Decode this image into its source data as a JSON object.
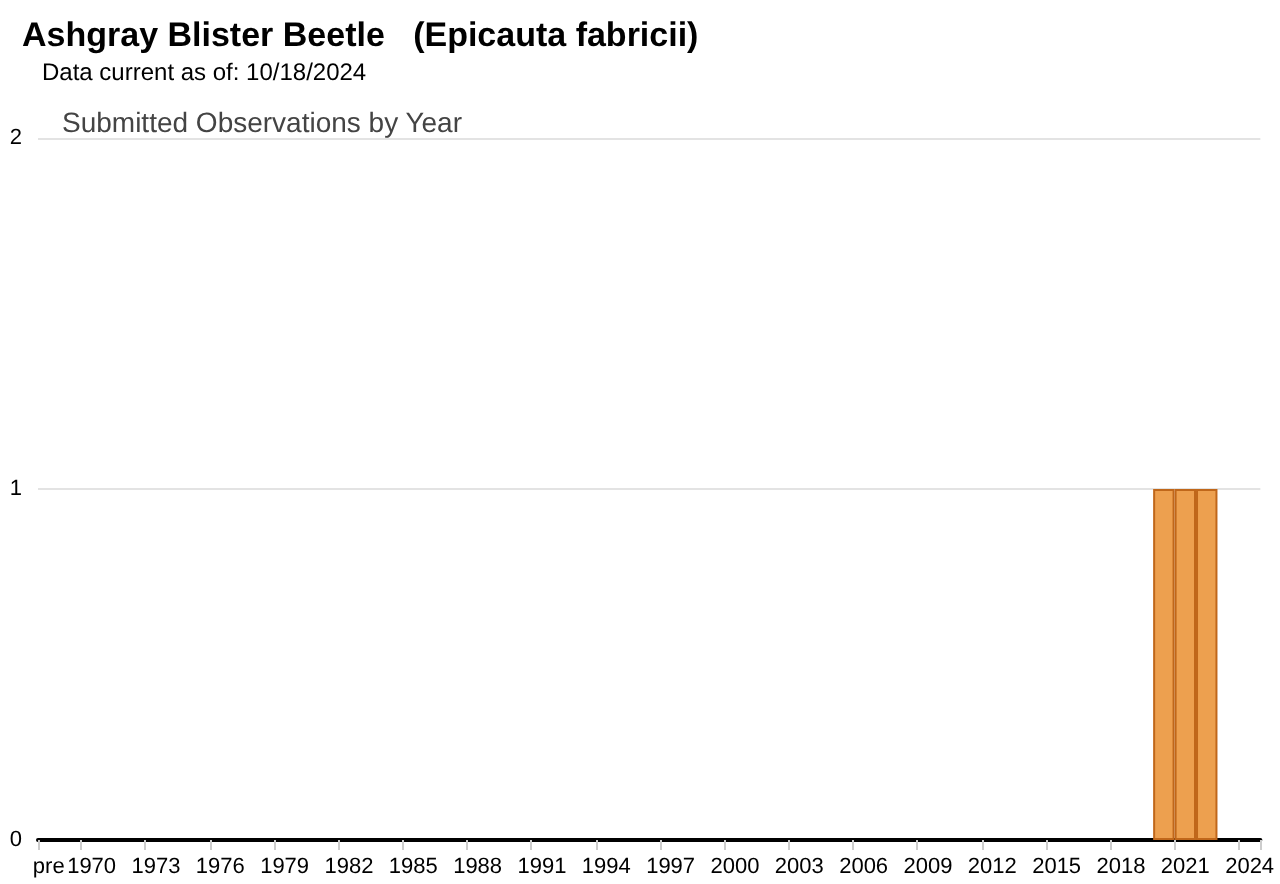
{
  "chart_data": {
    "type": "bar",
    "title": "Ashgray Blister Beetle   (Epicauta fabricii)",
    "subtitle": "Data current as of: 10/18/2024",
    "annotations": [
      "Submitted Observations by Year"
    ],
    "categories": [
      "pre",
      null,
      "1970",
      null,
      null,
      "1973",
      null,
      null,
      "1976",
      null,
      null,
      "1979",
      null,
      null,
      "1982",
      null,
      null,
      "1985",
      null,
      null,
      "1988",
      null,
      null,
      "1991",
      null,
      null,
      "1994",
      null,
      null,
      "1997",
      null,
      null,
      "2000",
      null,
      null,
      "2003",
      null,
      null,
      "2006",
      null,
      null,
      "2009",
      null,
      null,
      "2012",
      null,
      null,
      "2015",
      null,
      null,
      "2018",
      null,
      null,
      "2021",
      null,
      null,
      "2024"
    ],
    "values": [
      0,
      null,
      0,
      0,
      0,
      0,
      0,
      0,
      0,
      0,
      0,
      0,
      0,
      0,
      0,
      0,
      0,
      0,
      0,
      0,
      0,
      0,
      0,
      0,
      0,
      0,
      0,
      0,
      0,
      0,
      0,
      0,
      0,
      0,
      0,
      0,
      0,
      0,
      0,
      0,
      0,
      0,
      0,
      0,
      0,
      0,
      0,
      0,
      0,
      0,
      0,
      0,
      1,
      1,
      1,
      0,
      0
    ],
    "color": "#eda04f",
    "ylim": [
      0,
      2
    ],
    "yticks": [
      0,
      1,
      2
    ],
    "grid": "y"
  }
}
